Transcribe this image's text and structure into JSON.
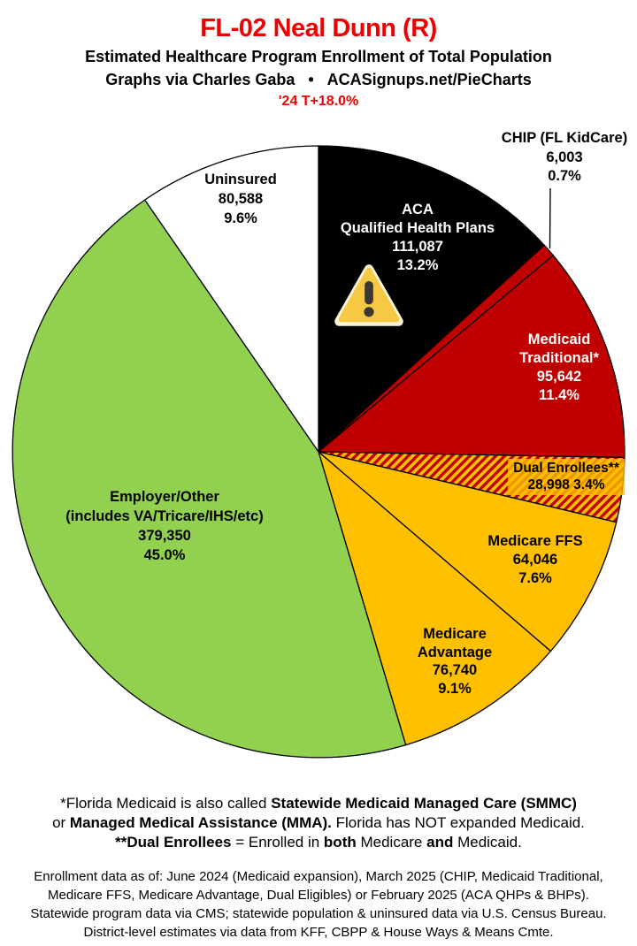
{
  "header": {
    "title": "FL-02 Neal Dunn (R)",
    "title_color": "#EE0000",
    "subtitle1": "Estimated Healthcare Program Enrollment of Total Population",
    "subtitle2": "Graphs via Charles Gaba   •   ACASignups.net/PieCharts",
    "trend": "'24 T+18.0%",
    "trend_color": "#EE0000"
  },
  "chart_data": {
    "type": "pie",
    "title": "Estimated Healthcare Program Enrollment of Total Population",
    "start_angle_deg": 0,
    "clockwise": true,
    "stroke_color": "#000000",
    "slices": [
      {
        "id": "aca",
        "label": "ACA Qualified Health Plans",
        "label_lines": [
          "ACA",
          "Qualified Health Plans"
        ],
        "value": 111087,
        "value_text": "111,087",
        "pct": 13.2,
        "pct_text": "13.2%",
        "color": "#000000",
        "text_color": "#ffffff"
      },
      {
        "id": "chip",
        "label": "CHIP (FL KidCare)",
        "label_lines": [
          "CHIP (FL KidCare)"
        ],
        "value": 6003,
        "value_text": "6,003",
        "pct": 0.7,
        "pct_text": "0.7%",
        "color": "#C00000",
        "text_color": "#000000",
        "outside_label": true
      },
      {
        "id": "medicaid",
        "label": "Medicaid Traditional*",
        "label_lines": [
          "Medicaid",
          "Traditional*"
        ],
        "value": 95642,
        "value_text": "95,642",
        "pct": 11.4,
        "pct_text": "11.4%",
        "color": "#C00000",
        "text_color": "#ffffff"
      },
      {
        "id": "dual",
        "label": "Dual Enrollees**",
        "label_lines": [
          "Dual Enrollees**"
        ],
        "value": 28998,
        "value_text": "28,998",
        "pct": 3.4,
        "pct_text": "3.4%",
        "color": "#FFC000",
        "pattern": {
          "stripe": "#C00000",
          "bg": "#FFC000"
        },
        "text_color": "#000000",
        "inline_value_pct": true
      },
      {
        "id": "ffs",
        "label": "Medicare FFS",
        "label_lines": [
          "Medicare FFS"
        ],
        "value": 64046,
        "value_text": "64,046",
        "pct": 7.6,
        "pct_text": "7.6%",
        "color": "#FFC000",
        "text_color": "#000000"
      },
      {
        "id": "madv",
        "label": "Medicare Advantage",
        "label_lines": [
          "Medicare",
          "Advantage"
        ],
        "value": 76740,
        "value_text": "76,740",
        "pct": 9.1,
        "pct_text": "9.1%",
        "color": "#FFC000",
        "text_color": "#000000"
      },
      {
        "id": "employer",
        "label": "Employer/Other (includes VA/Tricare/IHS/etc)",
        "label_lines": [
          "Employer/Other",
          "(includes VA/Tricare/IHS/etc)"
        ],
        "value": 379350,
        "value_text": "379,350",
        "pct": 45.0,
        "pct_text": "45.0%",
        "color": "#92D050",
        "text_color": "#000000"
      },
      {
        "id": "uninsured",
        "label": "Uninsured",
        "label_lines": [
          "Uninsured"
        ],
        "value": 80588,
        "value_text": "80,588",
        "pct": 9.6,
        "pct_text": "9.6%",
        "color": "#FFFFFF",
        "text_color": "#000000"
      }
    ],
    "icons": [
      {
        "name": "warning-icon",
        "on_slice": "aca"
      }
    ]
  },
  "footnotes": [
    [
      {
        "t": "*Florida Medicaid is also called ",
        "b": false
      },
      {
        "t": "Statewide Medicaid Managed Care (SMMC)",
        "b": true
      }
    ],
    [
      {
        "t": "or ",
        "b": false
      },
      {
        "t": "Managed Medical Assistance (MMA).",
        "b": true
      },
      {
        "t": " Florida has NOT expanded Medicaid.",
        "b": false
      }
    ],
    [
      {
        "t": "**Dual Enrollees",
        "b": true
      },
      {
        "t": " = Enrolled in ",
        "b": false
      },
      {
        "t": "both",
        "b": true
      },
      {
        "t": " Medicare ",
        "b": false
      },
      {
        "t": "and",
        "b": true
      },
      {
        "t": " Medicaid.",
        "b": false
      }
    ]
  ],
  "source_lines": [
    "Enrollment data as of: June 2024 (Medicaid expansion), March 2025 (CHIP, Medicaid Traditional,",
    "Medicare FFS, Medicare Advantage, Dual Eligibles) or February 2025 (ACA QHPs & BHPs).",
    "Statewide program data via CMS; statewide population & uninsured data via U.S. Census Bureau.",
    "District-level estimates via data from KFF, CBPP & House Ways & Means Cmte."
  ]
}
